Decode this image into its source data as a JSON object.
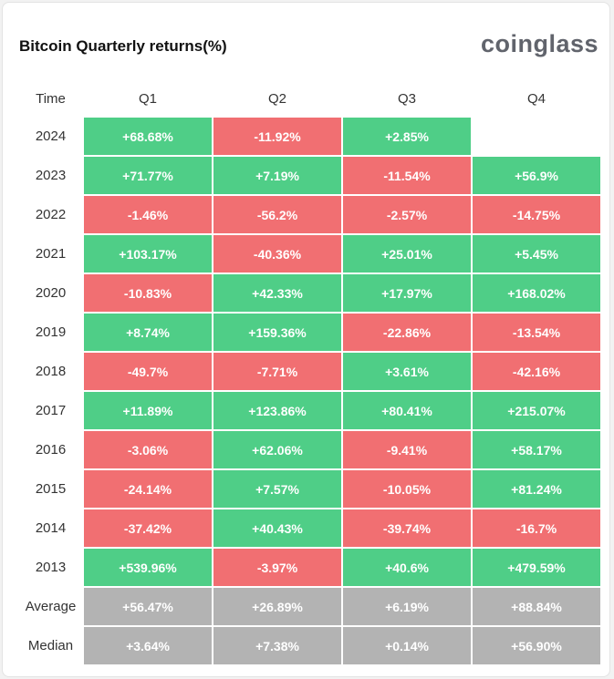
{
  "title": "Bitcoin Quarterly returns(%)",
  "brand": "coinglass",
  "colors": {
    "positive": "#4fce87",
    "negative": "#f16f72",
    "summary": "#b3b3b3"
  },
  "chart_data": {
    "type": "table",
    "title": "Bitcoin Quarterly returns(%)",
    "columns": [
      "Time",
      "Q1",
      "Q2",
      "Q3",
      "Q4"
    ],
    "rows": [
      {
        "label": "2024",
        "values": [
          "+68.68%",
          "-11.92%",
          "+2.85%",
          null
        ]
      },
      {
        "label": "2023",
        "values": [
          "+71.77%",
          "+7.19%",
          "-11.54%",
          "+56.9%"
        ]
      },
      {
        "label": "2022",
        "values": [
          "-1.46%",
          "-56.2%",
          "-2.57%",
          "-14.75%"
        ]
      },
      {
        "label": "2021",
        "values": [
          "+103.17%",
          "-40.36%",
          "+25.01%",
          "+5.45%"
        ]
      },
      {
        "label": "2020",
        "values": [
          "-10.83%",
          "+42.33%",
          "+17.97%",
          "+168.02%"
        ]
      },
      {
        "label": "2019",
        "values": [
          "+8.74%",
          "+159.36%",
          "-22.86%",
          "-13.54%"
        ]
      },
      {
        "label": "2018",
        "values": [
          "-49.7%",
          "-7.71%",
          "+3.61%",
          "-42.16%"
        ]
      },
      {
        "label": "2017",
        "values": [
          "+11.89%",
          "+123.86%",
          "+80.41%",
          "+215.07%"
        ]
      },
      {
        "label": "2016",
        "values": [
          "-3.06%",
          "+62.06%",
          "-9.41%",
          "+58.17%"
        ]
      },
      {
        "label": "2015",
        "values": [
          "-24.14%",
          "+7.57%",
          "-10.05%",
          "+81.24%"
        ]
      },
      {
        "label": "2014",
        "values": [
          "-37.42%",
          "+40.43%",
          "-39.74%",
          "-16.7%"
        ]
      },
      {
        "label": "2013",
        "values": [
          "+539.96%",
          "-3.97%",
          "+40.6%",
          "+479.59%"
        ]
      }
    ],
    "summary_rows": [
      {
        "label": "Average",
        "values": [
          "+56.47%",
          "+26.89%",
          "+6.19%",
          "+88.84%"
        ]
      },
      {
        "label": "Median",
        "values": [
          "+3.64%",
          "+7.38%",
          "+0.14%",
          "+56.90%"
        ]
      }
    ]
  }
}
